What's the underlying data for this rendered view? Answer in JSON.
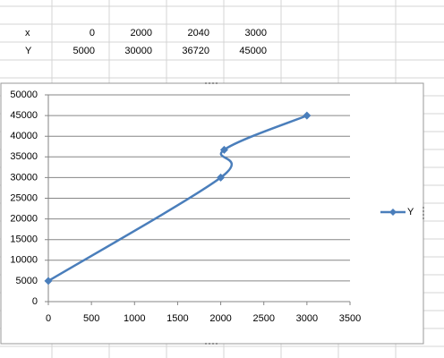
{
  "sheet": {
    "rows": [
      [
        "x",
        0,
        2000,
        2040,
        3000
      ],
      [
        "Y",
        5000,
        30000,
        36720,
        45000
      ]
    ]
  },
  "chart_data": {
    "type": "scatter",
    "smooth": true,
    "x": [
      0,
      2000,
      2040,
      3000
    ],
    "series": [
      {
        "name": "Y",
        "color": "#4a7ebb",
        "values": [
          5000,
          30000,
          36720,
          45000
        ]
      }
    ],
    "xlim": [
      0,
      3500
    ],
    "xticks": [
      0,
      500,
      1000,
      1500,
      2000,
      2500,
      3000,
      3500
    ],
    "ylim": [
      0,
      50000
    ],
    "yticks": [
      0,
      5000,
      10000,
      15000,
      20000,
      25000,
      30000,
      35000,
      40000,
      45000,
      50000
    ],
    "grid": true,
    "legend": "right"
  }
}
